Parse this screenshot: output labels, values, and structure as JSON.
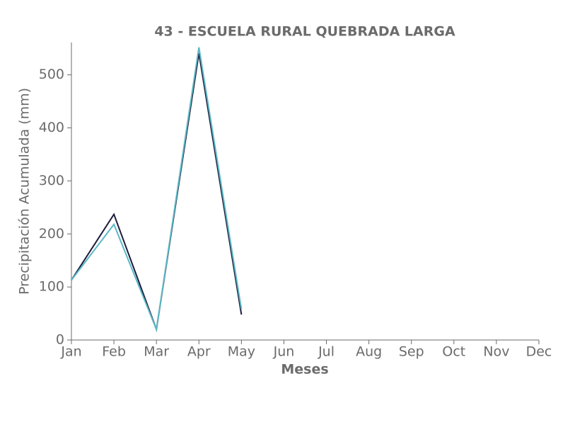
{
  "chart_data": {
    "type": "line",
    "title": "43 - ESCUELA RURAL QUEBRADA LARGA",
    "x_label": "Meses",
    "y_label": "Precipitación Acumulada (mm)",
    "categories": [
      "Jan",
      "Feb",
      "Mar",
      "Apr",
      "May",
      "Jun",
      "Jul",
      "Aug",
      "Sep",
      "Oct",
      "Nov",
      "Dec"
    ],
    "series": [
      {
        "color": "#1c1c3c",
        "values": [
          113,
          237,
          20,
          541,
          48,
          null,
          null,
          null,
          null,
          null,
          null,
          null
        ]
      },
      {
        "color": "#5bb8c4",
        "values": [
          113,
          218,
          20,
          552,
          58,
          null,
          null,
          null,
          null,
          null,
          null,
          null
        ]
      }
    ],
    "ylim": [
      0,
      561
    ],
    "yticks": [
      0,
      100,
      200,
      300,
      400,
      500
    ],
    "grid": false
  }
}
